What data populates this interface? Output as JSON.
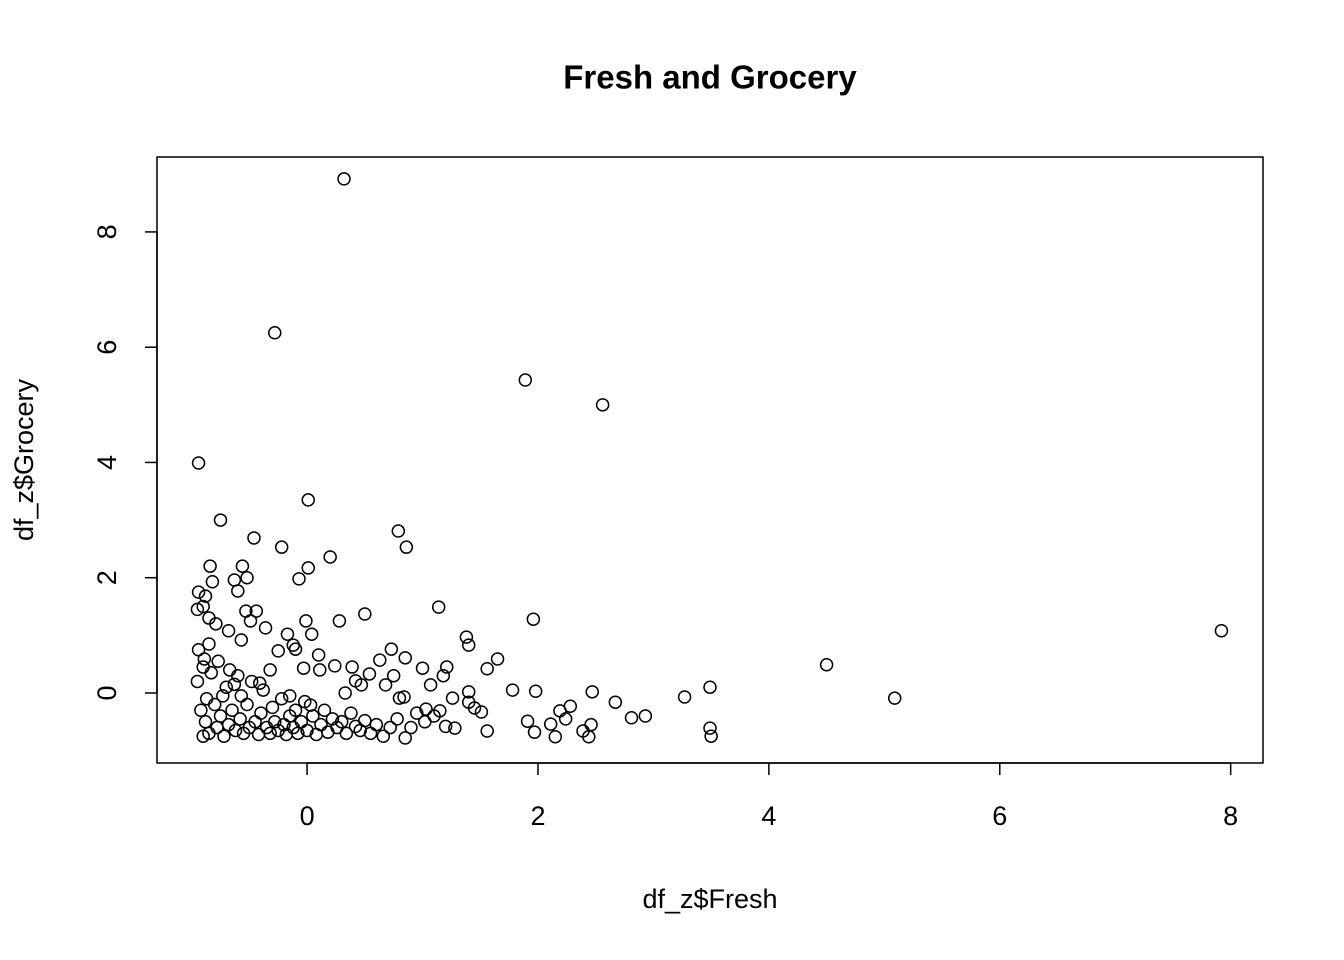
{
  "chart_data": {
    "type": "scatter",
    "title": "Fresh and Grocery",
    "x_label": "df_z$Fresh",
    "y_label": "df_z$Grocery",
    "xlim": [
      -1.3,
      8.28
    ],
    "ylim": [
      -1.215,
      9.3
    ],
    "xticks": [
      0,
      2,
      4,
      6,
      8
    ],
    "yticks": [
      0,
      2,
      4,
      6,
      8
    ],
    "color": "#000000",
    "x": [
      0.32,
      -0.28,
      1.89,
      2.56,
      -0.94,
      0.01,
      -0.75,
      0.79,
      0.86,
      -0.46,
      -0.22,
      0.2,
      0.01,
      -0.07,
      -0.56,
      -0.84,
      -0.63,
      -0.52,
      -0.82,
      -0.94,
      -0.88,
      -0.6,
      0.5,
      1.14,
      1.96,
      0.28,
      -0.01,
      7.92,
      4.5,
      5.09,
      3.49,
      3.49,
      3.5,
      3.27,
      2.93,
      2.81,
      2.67,
      2.47,
      2.46,
      2.44,
      2.39,
      2.28,
      2.24,
      2.19,
      2.15,
      2.11,
      1.98,
      1.97,
      1.91,
      1.78,
      1.65,
      1.56,
      1.56,
      1.51,
      1.45,
      1.38,
      1.4,
      1.4,
      1.4,
      1.21,
      1.18,
      1.26,
      1.15,
      1.07,
      1.0,
      1.03,
      1.28,
      0.85,
      0.73,
      0.63,
      0.75,
      0.68,
      0.84,
      0.8,
      0.54,
      0.39,
      0.47,
      0.42,
      0.24,
      0.33,
      0.11,
      0.1,
      0.04,
      -0.1,
      -0.17,
      -0.12,
      -0.25,
      -0.36,
      -0.44,
      -0.53,
      -0.49,
      -0.57,
      -0.68,
      -0.79,
      -0.85,
      -0.94,
      -0.89,
      -0.32,
      -0.03,
      0.03,
      -0.15,
      -0.41,
      -0.92,
      -0.88,
      -0.85,
      -0.8,
      -0.78,
      -0.75,
      -0.72,
      -0.7,
      -0.68,
      -0.65,
      -0.62,
      -0.6,
      -0.58,
      -0.55,
      -0.52,
      -0.5,
      -0.48,
      -0.45,
      -0.42,
      -0.4,
      -0.38,
      -0.35,
      -0.32,
      -0.3,
      -0.28,
      -0.25,
      -0.22,
      -0.2,
      -0.18,
      -0.15,
      -0.12,
      -0.1,
      -0.08,
      -0.05,
      -0.02,
      0.0,
      0.05,
      0.08,
      0.12,
      0.15,
      0.18,
      0.22,
      0.26,
      0.3,
      0.34,
      0.38,
      0.42,
      0.46,
      0.5,
      0.55,
      0.6,
      0.66,
      0.72,
      0.78,
      0.85,
      0.9,
      0.95,
      1.02,
      1.1,
      1.2,
      -0.95,
      -0.9,
      -0.87,
      -0.83,
      -0.77,
      -0.73,
      -0.67,
      -0.63,
      -0.57,
      -0.9,
      -0.85,
      -0.9,
      -0.95
    ],
    "values": [
      8.92,
      6.25,
      5.43,
      5.0,
      3.99,
      3.35,
      3.0,
      2.81,
      2.53,
      2.69,
      2.53,
      2.36,
      2.17,
      1.98,
      2.2,
      2.2,
      1.96,
      2.0,
      1.93,
      1.75,
      1.68,
      1.77,
      1.37,
      1.49,
      1.28,
      1.25,
      1.25,
      1.08,
      0.49,
      -0.09,
      0.1,
      -0.61,
      -0.75,
      -0.07,
      -0.4,
      -0.43,
      -0.16,
      0.02,
      -0.55,
      -0.76,
      -0.66,
      -0.23,
      -0.45,
      -0.31,
      -0.76,
      -0.54,
      0.03,
      -0.68,
      -0.49,
      0.05,
      0.59,
      0.42,
      -0.66,
      -0.33,
      -0.26,
      0.97,
      0.83,
      0.02,
      -0.16,
      0.45,
      0.3,
      -0.09,
      -0.31,
      0.14,
      0.43,
      -0.28,
      -0.61,
      0.61,
      0.76,
      0.57,
      0.3,
      0.14,
      -0.07,
      -0.09,
      0.33,
      0.45,
      0.14,
      0.21,
      0.47,
      0.0,
      0.4,
      0.66,
      1.02,
      0.76,
      1.02,
      0.83,
      0.73,
      1.13,
      1.42,
      1.42,
      1.25,
      0.92,
      1.08,
      1.2,
      0.85,
      0.75,
      0.59,
      0.4,
      0.43,
      -0.21,
      -0.05,
      0.17,
      -0.3,
      -0.5,
      -0.7,
      -0.2,
      -0.6,
      -0.4,
      -0.75,
      0.1,
      -0.55,
      -0.3,
      -0.65,
      0.3,
      -0.45,
      -0.7,
      -0.2,
      -0.6,
      0.2,
      -0.5,
      -0.72,
      -0.35,
      0.05,
      -0.6,
      -0.7,
      -0.25,
      -0.5,
      -0.65,
      -0.1,
      -0.55,
      -0.72,
      -0.4,
      -0.6,
      -0.3,
      -0.7,
      -0.5,
      -0.15,
      -0.65,
      -0.4,
      -0.72,
      -0.55,
      -0.3,
      -0.68,
      -0.45,
      -0.6,
      -0.5,
      -0.7,
      -0.35,
      -0.58,
      -0.65,
      -0.48,
      -0.7,
      -0.55,
      -0.75,
      -0.6,
      -0.45,
      -0.78,
      -0.6,
      -0.35,
      -0.5,
      -0.4,
      -0.58,
      0.2,
      0.45,
      -0.1,
      0.35,
      0.55,
      -0.05,
      0.4,
      0.15,
      -0.05,
      -0.75,
      1.3,
      1.5,
      1.45
    ]
  }
}
